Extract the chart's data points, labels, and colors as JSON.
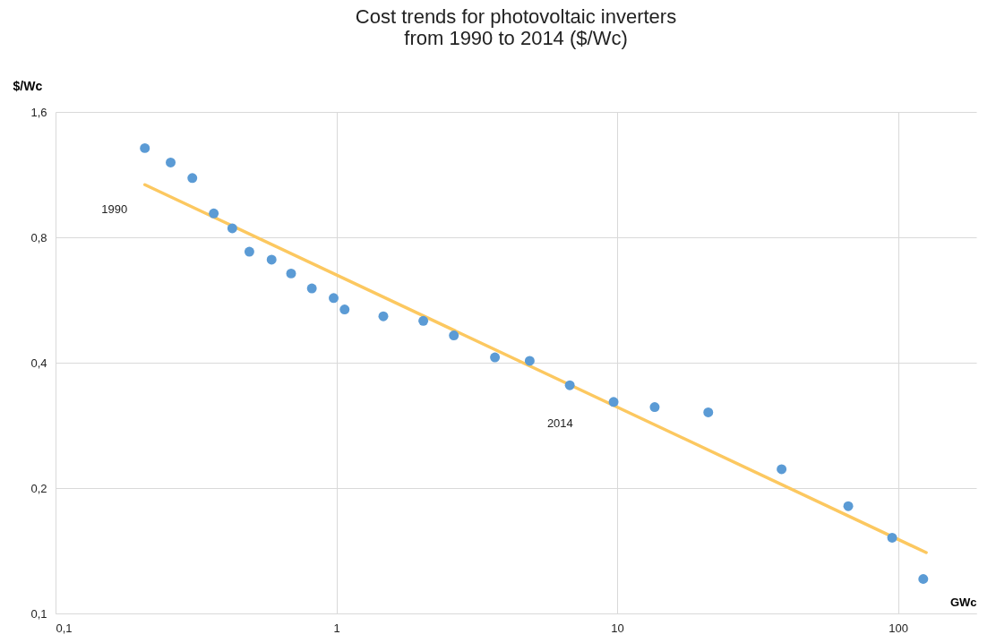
{
  "chart_data": {
    "type": "scatter",
    "title": "Cost trends for photovoltaic inverters\nfrom 1990 to 2014 ($/Wc)",
    "xlabel": "GWc",
    "ylabel": "$/Wc",
    "log": "xy",
    "grid": true,
    "xlim": [
      0.1,
      190
    ],
    "xticks": [
      {
        "value": 0.1,
        "label": "0,1"
      },
      1,
      10,
      100
    ],
    "ylim": [
      0.1,
      1.6
    ],
    "yticks": [
      {
        "value": 0.1,
        "label": "0,1"
      },
      {
        "value": 0.2,
        "label": "0,2"
      },
      {
        "value": 0.4,
        "label": "0,4"
      },
      {
        "value": 0.8,
        "label": "0,8"
      },
      {
        "value": 1.6,
        "label": "1,6"
      }
    ],
    "series": [
      {
        "color": "#5b9bd5",
        "marker": "circle",
        "x": [
          0.208,
          0.257,
          0.307,
          0.366,
          0.426,
          0.49,
          0.588,
          0.69,
          0.818,
          0.978,
          1.07,
          1.47,
          2.04,
          2.62,
          3.67,
          4.88,
          6.78,
          9.71,
          13.6,
          21.1,
          38.5,
          66.5,
          95.3,
          123
        ],
        "values": [
          1.31,
          1.21,
          1.11,
          0.913,
          0.841,
          0.739,
          0.707,
          0.655,
          0.603,
          0.572,
          0.537,
          0.517,
          0.504,
          0.465,
          0.412,
          0.404,
          0.353,
          0.322,
          0.313,
          0.304,
          0.222,
          0.181,
          0.152,
          0.121
        ]
      },
      {
        "type": "line",
        "marker": "none",
        "color": "#fcc860",
        "x": [
          0.208,
          126
        ],
        "values": [
          1.07,
          0.14
        ]
      }
    ],
    "annotations": [
      "1990",
      "2014"
    ]
  }
}
